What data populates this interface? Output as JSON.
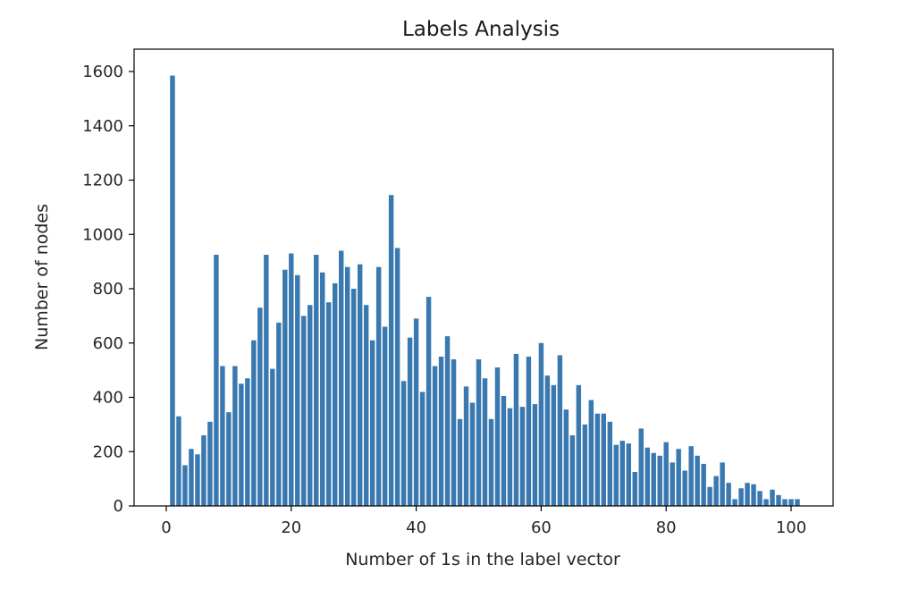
{
  "chart_data": {
    "type": "bar",
    "title": "Labels Analysis",
    "xlabel": "Number of 1s in the label vector",
    "ylabel": "Number of nodes",
    "xlim": [
      -5,
      106
    ],
    "ylim": [
      0,
      1600
    ],
    "xticks": [
      0,
      20,
      40,
      60,
      80,
      100
    ],
    "yticks": [
      0,
      200,
      400,
      600,
      800,
      1000,
      1200,
      1400,
      1600
    ],
    "bar_color": "#3a78b0",
    "grid": false,
    "legend": "none",
    "x": [
      1,
      2,
      3,
      4,
      5,
      6,
      7,
      8,
      9,
      10,
      11,
      12,
      13,
      14,
      15,
      16,
      17,
      18,
      19,
      20,
      21,
      22,
      23,
      24,
      25,
      26,
      27,
      28,
      29,
      30,
      31,
      32,
      33,
      34,
      35,
      36,
      37,
      38,
      39,
      40,
      41,
      42,
      43,
      44,
      45,
      46,
      47,
      48,
      49,
      50,
      51,
      52,
      53,
      54,
      55,
      56,
      57,
      58,
      59,
      60,
      61,
      62,
      63,
      64,
      65,
      66,
      67,
      68,
      69,
      70,
      71,
      72,
      73,
      74,
      75,
      76,
      77,
      78,
      79,
      80,
      81,
      82,
      83,
      84,
      85,
      86,
      87,
      88,
      89,
      90,
      91,
      92,
      93,
      94,
      95,
      96,
      97,
      98,
      99,
      100,
      101
    ],
    "values": [
      1585,
      330,
      150,
      210,
      190,
      260,
      310,
      925,
      515,
      345,
      515,
      450,
      470,
      610,
      730,
      925,
      505,
      675,
      870,
      930,
      850,
      700,
      740,
      925,
      860,
      750,
      820,
      940,
      880,
      800,
      890,
      740,
      610,
      880,
      660,
      1145,
      950,
      460,
      620,
      690,
      420,
      770,
      515,
      550,
      625,
      540,
      320,
      440,
      380,
      540,
      470,
      320,
      510,
      405,
      360,
      560,
      365,
      550,
      375,
      600,
      480,
      445,
      555,
      355,
      260,
      445,
      300,
      390,
      340,
      340,
      310,
      225,
      240,
      230,
      125,
      285,
      215,
      195,
      185,
      235,
      160,
      210,
      130,
      220,
      185,
      155,
      70,
      110,
      160,
      85,
      25,
      65,
      85,
      80,
      55,
      25,
      60,
      40,
      25,
      25,
      25
    ]
  }
}
